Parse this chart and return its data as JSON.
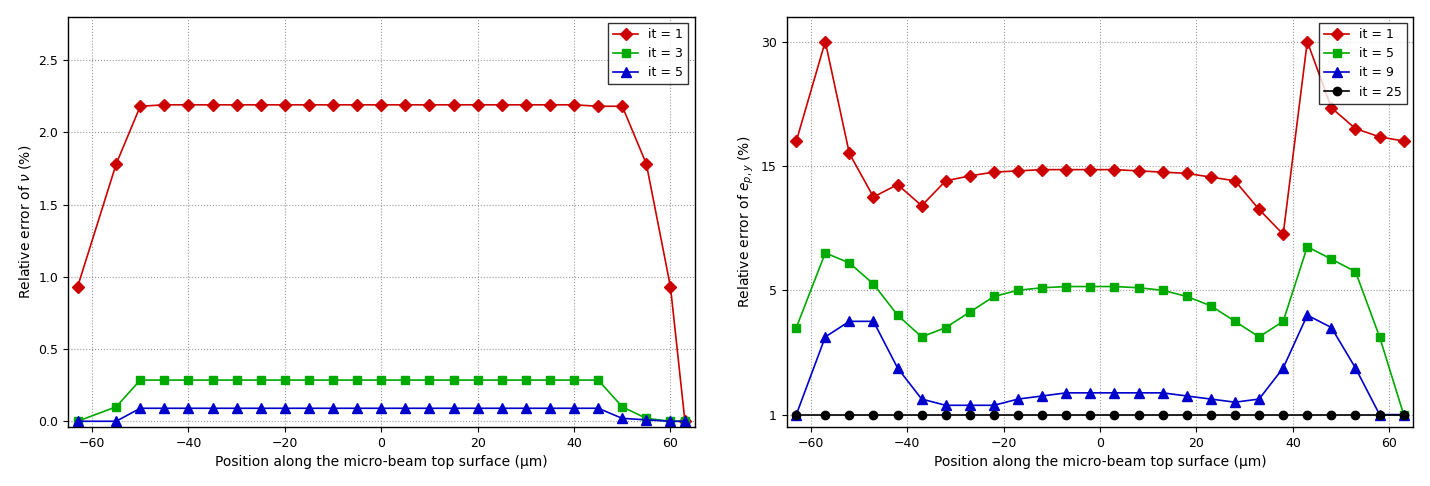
{
  "left": {
    "ylabel": "Relative error of $\\nu$ (%)",
    "xlabel": "Position along the micro-beam top surface (μm)",
    "xlim": [
      -65,
      65
    ],
    "ylim": [
      -0.04,
      2.8
    ],
    "yticks": [
      0,
      0.5,
      1.0,
      1.5,
      2.0,
      2.5
    ],
    "xticks": [
      -60,
      -40,
      -20,
      0,
      20,
      40,
      60
    ],
    "series": [
      {
        "label": "it = 1",
        "color": "#cc0000",
        "marker": "D",
        "x": [
          -63,
          -55,
          -50,
          -45,
          -40,
          -35,
          -30,
          -25,
          -20,
          -15,
          -10,
          -5,
          0,
          5,
          10,
          15,
          20,
          25,
          30,
          35,
          40,
          45,
          50,
          55,
          60,
          63
        ],
        "y": [
          0.93,
          1.78,
          2.18,
          2.19,
          2.19,
          2.19,
          2.19,
          2.19,
          2.19,
          2.19,
          2.19,
          2.19,
          2.19,
          2.19,
          2.19,
          2.19,
          2.19,
          2.19,
          2.19,
          2.19,
          2.19,
          2.18,
          2.18,
          1.78,
          0.93,
          0.0
        ]
      },
      {
        "label": "it = 3",
        "color": "#00aa00",
        "marker": "s",
        "x": [
          -63,
          -55,
          -50,
          -45,
          -40,
          -35,
          -30,
          -25,
          -20,
          -15,
          -10,
          -5,
          0,
          5,
          10,
          15,
          20,
          25,
          30,
          35,
          40,
          45,
          50,
          55,
          60,
          63
        ],
        "y": [
          0.0,
          0.1,
          0.285,
          0.285,
          0.285,
          0.285,
          0.285,
          0.285,
          0.285,
          0.285,
          0.285,
          0.285,
          0.285,
          0.285,
          0.285,
          0.285,
          0.285,
          0.285,
          0.285,
          0.285,
          0.285,
          0.285,
          0.1,
          0.02,
          0.0,
          0.0
        ]
      },
      {
        "label": "it = 5",
        "color": "#0000cc",
        "marker": "^",
        "x": [
          -63,
          -55,
          -50,
          -45,
          -40,
          -35,
          -30,
          -25,
          -20,
          -15,
          -10,
          -5,
          0,
          5,
          10,
          15,
          20,
          25,
          30,
          35,
          40,
          45,
          50,
          55,
          60,
          63
        ],
        "y": [
          0.0,
          0.0,
          0.09,
          0.09,
          0.09,
          0.09,
          0.09,
          0.09,
          0.09,
          0.09,
          0.09,
          0.09,
          0.09,
          0.09,
          0.09,
          0.09,
          0.09,
          0.09,
          0.09,
          0.09,
          0.09,
          0.09,
          0.02,
          0.01,
          0.0,
          0.0
        ]
      }
    ]
  },
  "right": {
    "ylabel": "Relative error of $e_{p,y}$ (%)",
    "xlabel": "Position along the micro-beam top surface (μm)",
    "xlim": [
      -65,
      65
    ],
    "ytick_vals": [
      1,
      5,
      15,
      30
    ],
    "ytick_pos": [
      0,
      1,
      2,
      3
    ],
    "xticks": [
      -60,
      -40,
      -20,
      0,
      20,
      40,
      60
    ],
    "series": [
      {
        "label": "it = 1",
        "color": "#cc0000",
        "marker": "D",
        "x": [
          -63,
          -57,
          -52,
          -47,
          -42,
          -37,
          -32,
          -27,
          -22,
          -17,
          -12,
          -7,
          -2,
          3,
          8,
          13,
          18,
          23,
          28,
          33,
          38,
          43,
          48,
          53,
          58,
          63
        ],
        "y": [
          18.0,
          30.5,
          16.5,
          12.5,
          13.5,
          11.8,
          13.8,
          14.2,
          14.5,
          14.6,
          14.7,
          14.7,
          14.7,
          14.7,
          14.6,
          14.5,
          14.4,
          14.1,
          13.8,
          11.5,
          9.5,
          30.5,
          22.0,
          19.5,
          18.5,
          18.0
        ]
      },
      {
        "label": "it = 5",
        "color": "#00aa00",
        "marker": "s",
        "x": [
          -63,
          -57,
          -52,
          -47,
          -42,
          -37,
          -32,
          -27,
          -22,
          -17,
          -12,
          -7,
          -2,
          3,
          8,
          13,
          18,
          23,
          28,
          33,
          38,
          43,
          48,
          53,
          58,
          63
        ],
        "y": [
          3.8,
          8.0,
          7.2,
          5.5,
          4.2,
          3.5,
          3.8,
          4.3,
          4.8,
          5.0,
          5.2,
          5.3,
          5.3,
          5.3,
          5.2,
          5.0,
          4.8,
          4.5,
          4.0,
          3.5,
          4.0,
          8.5,
          7.5,
          6.5,
          3.5,
          1.0
        ]
      },
      {
        "label": "it = 9",
        "color": "#0000cc",
        "marker": "^",
        "x": [
          -63,
          -57,
          -52,
          -47,
          -42,
          -37,
          -32,
          -27,
          -22,
          -17,
          -12,
          -7,
          -2,
          3,
          8,
          13,
          18,
          23,
          28,
          33,
          38,
          43,
          48,
          53,
          58,
          63
        ],
        "y": [
          1.0,
          3.5,
          4.0,
          4.0,
          2.5,
          1.5,
          1.3,
          1.3,
          1.3,
          1.5,
          1.6,
          1.7,
          1.7,
          1.7,
          1.7,
          1.7,
          1.6,
          1.5,
          1.4,
          1.5,
          2.5,
          4.2,
          3.8,
          2.5,
          1.0,
          0.8
        ]
      },
      {
        "label": "it = 25",
        "color": "#000000",
        "marker": "o",
        "x": [
          -63,
          -57,
          -52,
          -47,
          -42,
          -37,
          -32,
          -27,
          -22,
          -17,
          -12,
          -7,
          -2,
          3,
          8,
          13,
          18,
          23,
          28,
          33,
          38,
          43,
          48,
          53,
          58,
          63
        ],
        "y": [
          1.0,
          1.0,
          1.0,
          1.0,
          1.0,
          1.0,
          1.0,
          1.0,
          1.0,
          1.0,
          1.0,
          1.0,
          1.0,
          1.0,
          1.0,
          1.0,
          1.0,
          1.0,
          1.0,
          1.0,
          1.0,
          1.0,
          1.0,
          1.0,
          1.0,
          1.0
        ]
      }
    ]
  },
  "background_color": "#ffffff",
  "grid_color": "#999999"
}
